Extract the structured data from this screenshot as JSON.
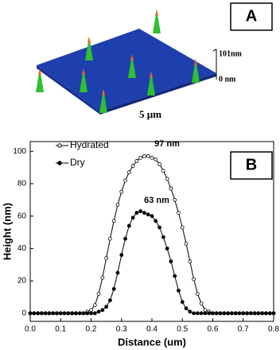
{
  "panel_a": {
    "label": "A",
    "z_top": "101nm",
    "z_bottom": "0 nm",
    "scale": "5 µm"
  },
  "chart_data": {
    "type": "line",
    "panel_label": "B",
    "x_label": "Distance (um)",
    "y_label": "Height (nm)",
    "annotations": [
      "97 nm",
      "63 nm"
    ],
    "x": [
      0,
      0.0125,
      0.025,
      0.0375,
      0.05,
      0.0625,
      0.075,
      0.0875,
      0.1,
      0.1125,
      0.125,
      0.1375,
      0.15,
      0.1625,
      0.175,
      0.1875,
      0.2,
      0.2125,
      0.225,
      0.2375,
      0.25,
      0.2625,
      0.275,
      0.2875,
      0.3,
      0.3125,
      0.325,
      0.3375,
      0.35,
      0.3625,
      0.375,
      0.3875,
      0.4,
      0.4125,
      0.425,
      0.4375,
      0.45,
      0.4625,
      0.475,
      0.4875,
      0.5,
      0.5125,
      0.525,
      0.5375,
      0.55,
      0.5625,
      0.575,
      0.5875,
      0.6,
      0.6125,
      0.625,
      0.6375,
      0.65,
      0.6625,
      0.675,
      0.6875,
      0.7,
      0.7125,
      0.725,
      0.7375,
      0.75,
      0.7625,
      0.775,
      0.7875,
      0.8
    ],
    "series": [
      {
        "name": "Hydrated",
        "color": "#000000",
        "marker_filled": false,
        "values": [
          0,
          0,
          0,
          0,
          0,
          0,
          0,
          0,
          0,
          0,
          0,
          0,
          0,
          0,
          0,
          1,
          2,
          5,
          12,
          22,
          34,
          46,
          57,
          67,
          75,
          82,
          87,
          91,
          94,
          96,
          97,
          97,
          96,
          95,
          92,
          88,
          83,
          77,
          70,
          62,
          53,
          43,
          32,
          21,
          12,
          6,
          2,
          1,
          0,
          0,
          0,
          0,
          0,
          0,
          0,
          0,
          0,
          0,
          0,
          0,
          0,
          0,
          0,
          0,
          0
        ]
      },
      {
        "name": "Dry",
        "color": "#000000",
        "marker_filled": true,
        "values": [
          0,
          0,
          0,
          0,
          0,
          0,
          0,
          0,
          0,
          0,
          0,
          0,
          0,
          0,
          0,
          0,
          0,
          0,
          1,
          2,
          4,
          8,
          15,
          25,
          36,
          46,
          54,
          59,
          62,
          63,
          62,
          61,
          60,
          57,
          53,
          47,
          40,
          32,
          23,
          14,
          7,
          3,
          1,
          0,
          0,
          0,
          0,
          0,
          0,
          0,
          0,
          0,
          0,
          0,
          0,
          0,
          0,
          0,
          0,
          0,
          0,
          0,
          0,
          0,
          0
        ]
      }
    ],
    "xlim": [
      0,
      0.8
    ],
    "ylim": [
      -5,
      106
    ],
    "xticks": [
      {
        "value": 0,
        "label": "0.0"
      },
      0.1,
      0.2,
      0.3,
      0.4,
      0.5,
      0.6,
      0.7,
      0.8
    ],
    "yticks": [
      0,
      20,
      40,
      60,
      80,
      100
    ],
    "legend": "upper left"
  }
}
